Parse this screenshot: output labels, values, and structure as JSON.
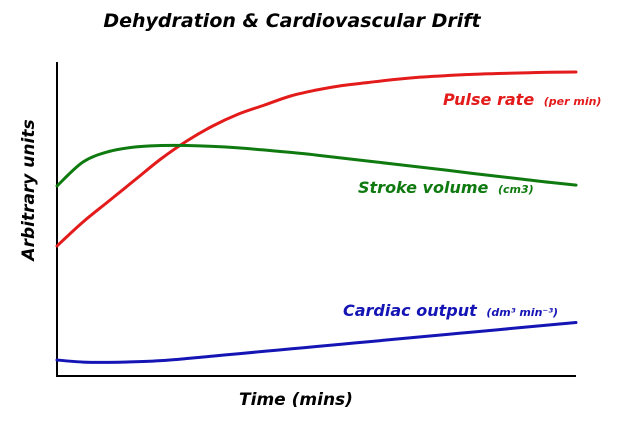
{
  "chart_data": {
    "type": "line",
    "title": "Dehydration & Cardiovascular Drift",
    "xlabel": "Time (mins)",
    "ylabel": "Arbitrary units",
    "xlim": [
      0,
      100
    ],
    "ylim": [
      0,
      100
    ],
    "grid": false,
    "legend": "inline labels beside each line",
    "x": [
      0,
      5,
      10,
      15,
      20,
      25,
      30,
      35,
      40,
      45,
      50,
      55,
      60,
      65,
      70,
      75,
      80,
      85,
      90,
      95,
      100
    ],
    "series": [
      {
        "name": "Pulse rate",
        "unit": "(per min)",
        "color": "#e31b1b",
        "values": [
          42,
          50,
          57,
          64,
          71,
          77,
          82,
          86,
          89,
          92,
          94,
          95.5,
          96.5,
          97.5,
          98.3,
          98.8,
          99.2,
          99.5,
          99.7,
          99.9,
          100
        ]
      },
      {
        "name": "Stroke volume",
        "unit": "(cm3)",
        "color": "#0f7a0f",
        "values": [
          62,
          70,
          73.5,
          75,
          75.5,
          75.5,
          75.2,
          74.7,
          74,
          73.2,
          72.3,
          71.3,
          70.3,
          69.3,
          68.3,
          67.3,
          66.2,
          65.2,
          64.2,
          63.2,
          62.3
        ]
      },
      {
        "name": "Cardiac output",
        "unit_html": "(dm³ min⁻³)",
        "unit": "(dm³ min⁻³)",
        "color": "#1515b5",
        "values": [
          4,
          3.3,
          3.2,
          3.4,
          3.8,
          4.5,
          5.3,
          6.1,
          6.9,
          7.7,
          8.5,
          9.3,
          10.1,
          10.9,
          11.7,
          12.5,
          13.3,
          14.1,
          14.9,
          15.7,
          16.5
        ]
      }
    ]
  }
}
